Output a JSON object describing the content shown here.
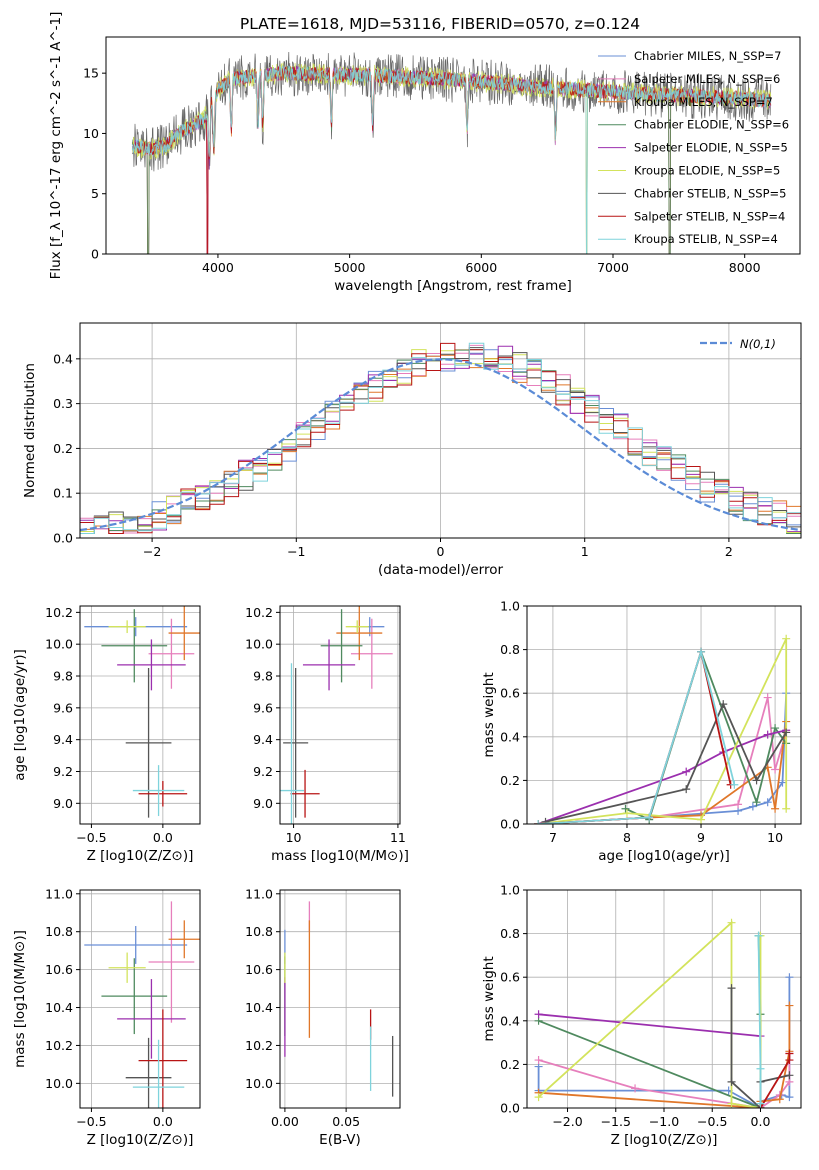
{
  "figure_title": "PLATE=1618, MJD=53116, FIBERID=0570, z=0.124",
  "series_names": [
    "Chabrier MILES, N_SSP=7",
    "Salpeter MILES, N_SSP=6",
    "Kroupa MILES, N_SSP=7",
    "Chabrier ELODIE, N_SSP=6",
    "Salpeter ELODIE, N_SSP=5",
    "Kroupa ELODIE, N_SSP=5",
    "Chabrier STELIB, N_SSP=5",
    "Salpeter STELIB, N_SSP=4",
    "Kroupa STELIB, N_SSP=4"
  ],
  "series_colors": [
    "#6a8fd6",
    "#e67fbc",
    "#e0772a",
    "#4f8a5f",
    "#9b2fae",
    "#d3e35c",
    "#555555",
    "#b81414",
    "#7fd3dc"
  ],
  "chart_data": [
    {
      "type": "line",
      "panel": "spectrum",
      "xlabel": "wavelength [Angstrom, rest frame]",
      "ylabel": "Flux [f_λ 10^-17 erg cm^-2 s^-1 A^-1]",
      "xlim": [
        3150,
        8420
      ],
      "ylim": [
        0,
        18
      ],
      "xticks": [
        4000,
        5000,
        6000,
        7000,
        8000
      ],
      "yticks": [
        0,
        5,
        10,
        15
      ],
      "x_range_data": [
        3350,
        8200
      ],
      "continuum_x": [
        3350,
        3500,
        3600,
        3700,
        3800,
        3900,
        4000,
        4100,
        4300,
        4500,
        4800,
        5200,
        5600,
        6000,
        6400,
        6800,
        7200,
        7600,
        8000,
        8200
      ],
      "continuum_y": [
        9,
        8.7,
        8.9,
        10,
        10.6,
        11.3,
        13.6,
        14.5,
        14.8,
        15,
        14.9,
        14.8,
        14.6,
        14.3,
        13.9,
        13.6,
        13.3,
        13.1,
        12.9,
        12.7
      ],
      "absorption_lines": [
        3934,
        3969,
        4101,
        4304,
        4340,
        4861,
        5175,
        5892,
        6563
      ],
      "deep_drop_x": [
        3470,
        3920,
        6800,
        7430
      ],
      "legend": "upper right",
      "grid": false
    },
    {
      "type": "line",
      "panel": "residual_histogram",
      "xlabel": "(data-model)/error",
      "ylabel": "Normed distribution",
      "xlim": [
        -2.5,
        2.5
      ],
      "ylim": [
        0,
        0.48
      ],
      "xticks": [
        -2,
        -1,
        0,
        1,
        2
      ],
      "yticks": [
        0.0,
        0.1,
        0.2,
        0.3,
        0.4
      ],
      "bin_width": 0.1,
      "legend_label": "N(0,1)",
      "normal_mean": 0,
      "normal_sigma": 1,
      "grid": true
    },
    {
      "type": "scatter",
      "panel": "age_vs_Z",
      "xlabel": "Z [log10(Z/Z⊙)]",
      "ylabel": "age  [log10(age/yr)]",
      "xlim": [
        -0.58,
        0.26
      ],
      "ylim": [
        8.87,
        10.24
      ],
      "xticks": [
        -0.5,
        0.0
      ],
      "yticks": [
        9.0,
        9.2,
        9.4,
        9.6,
        9.8,
        10.0,
        10.2
      ],
      "points": [
        {
          "x": -0.19,
          "xerr": 0.36,
          "y": 10.11,
          "yerr": 0.06
        },
        {
          "x": 0.06,
          "xerr": 0.16,
          "y": 9.94,
          "yerr": 0.22
        },
        {
          "x": 0.15,
          "xerr": 0.11,
          "y": 10.07,
          "yerr": 0.17
        },
        {
          "x": -0.2,
          "xerr": 0.23,
          "y": 9.99,
          "yerr": 0.23
        },
        {
          "x": -0.08,
          "xerr": 0.24,
          "y": 9.87,
          "yerr": 0.16
        },
        {
          "x": -0.25,
          "xerr": 0.13,
          "y": 10.11,
          "yerr": 0.04
        },
        {
          "x": -0.1,
          "xerr": 0.16,
          "y": 9.38,
          "yerr": 0.47
        },
        {
          "x": 0.0,
          "xerr": 0.17,
          "y": 9.06,
          "yerr": 0.08
        },
        {
          "x": -0.03,
          "xerr": 0.18,
          "y": 9.08,
          "yerr": 0.16
        }
      ],
      "grid": true
    },
    {
      "type": "scatter",
      "panel": "age_vs_mass",
      "xlabel": "mass [log10(M/M⊙)]",
      "ylabel": "",
      "xlim": [
        9.87,
        11.02
      ],
      "ylim": [
        8.87,
        10.24
      ],
      "xticks": [
        10,
        11
      ],
      "yticks": [
        9.0,
        9.2,
        9.4,
        9.6,
        9.8,
        10.0,
        10.2
      ],
      "points": [
        {
          "x": 10.73,
          "xerr": 0.14,
          "y": 10.11,
          "yerr": 0.06
        },
        {
          "x": 10.75,
          "xerr": 0.2,
          "y": 9.94,
          "yerr": 0.22
        },
        {
          "x": 10.63,
          "xerr": 0.22,
          "y": 10.07,
          "yerr": 0.17
        },
        {
          "x": 10.46,
          "xerr": 0.2,
          "y": 9.99,
          "yerr": 0.23
        },
        {
          "x": 10.34,
          "xerr": 0.25,
          "y": 9.87,
          "yerr": 0.16
        },
        {
          "x": 10.61,
          "xerr": 0.11,
          "y": 10.11,
          "yerr": 0.04
        },
        {
          "x": 10.02,
          "xerr": 0.12,
          "y": 9.38,
          "yerr": 0.47
        },
        {
          "x": 10.11,
          "xerr": 0.14,
          "y": 9.06,
          "yerr": 0.15
        },
        {
          "x": 9.98,
          "xerr": 0.12,
          "y": 9.08,
          "yerr": 0.8
        }
      ],
      "grid": true
    },
    {
      "type": "line",
      "panel": "mass_weight_vs_age",
      "xlabel": "age  [log10(age/yr)]",
      "ylabel": "mass weight",
      "xlim": [
        6.65,
        10.35
      ],
      "ylim": [
        0,
        1.0
      ],
      "xticks": [
        7,
        8,
        9,
        10
      ],
      "yticks": [
        0.0,
        0.2,
        0.4,
        0.6,
        0.8,
        1.0
      ],
      "series": [
        {
          "x": [
            6.8,
            8.3,
            9.5,
            9.7,
            9.9,
            10.1,
            10.15
          ],
          "y": [
            0.0,
            0.03,
            0.06,
            0.08,
            0.1,
            0.19,
            0.6
          ]
        },
        {
          "x": [
            6.8,
            8.3,
            9.5,
            9.9,
            10.0,
            10.15
          ],
          "y": [
            0.0,
            0.03,
            0.09,
            0.58,
            0.25,
            0.42
          ]
        },
        {
          "x": [
            6.8,
            8.3,
            9.0,
            9.9,
            10.0,
            10.15
          ],
          "y": [
            0.0,
            0.03,
            0.04,
            0.26,
            0.07,
            0.47
          ]
        },
        {
          "x": [
            7.98,
            8.3,
            9.0,
            9.75,
            10.0,
            10.15
          ],
          "y": [
            0.07,
            0.02,
            0.79,
            0.1,
            0.44,
            0.37
          ]
        },
        {
          "x": [
            6.8,
            8.8,
            9.3,
            9.9,
            10.15
          ],
          "y": [
            0.0,
            0.24,
            0.33,
            0.41,
            0.43
          ]
        },
        {
          "x": [
            6.8,
            8.0,
            9.0,
            10.15,
            10.15
          ],
          "y": [
            0.0,
            0.05,
            0.02,
            0.85,
            0.07
          ]
        },
        {
          "x": [
            6.9,
            8.8,
            9.3,
            9.75,
            10.15
          ],
          "y": [
            0.01,
            0.16,
            0.55,
            0.2,
            0.42
          ]
        },
        {
          "x": [
            6.8,
            8.3,
            9.0,
            9.4
          ],
          "y": [
            0.0,
            0.03,
            0.79,
            0.18
          ]
        },
        {
          "x": [
            6.8,
            8.3,
            9.0,
            9.45
          ],
          "y": [
            0.0,
            0.03,
            0.79,
            0.18
          ]
        }
      ],
      "grid": true
    },
    {
      "type": "scatter",
      "panel": "mass_vs_Z",
      "xlabel": "Z [log10(Z/Z⊙)]",
      "ylabel": "mass [log10(M/M⊙)]",
      "xlim": [
        -0.58,
        0.26
      ],
      "ylim": [
        9.87,
        11.02
      ],
      "xticks": [
        -0.5,
        0.0
      ],
      "yticks": [
        10.0,
        10.2,
        10.4,
        10.6,
        10.8,
        11.0
      ],
      "points": [
        {
          "x": -0.19,
          "xerr": 0.36,
          "y": 10.73,
          "yerr": 0.1
        },
        {
          "x": 0.06,
          "xerr": 0.16,
          "y": 10.64,
          "yerr": 0.32
        },
        {
          "x": 0.15,
          "xerr": 0.11,
          "y": 10.76,
          "yerr": 0.1
        },
        {
          "x": -0.2,
          "xerr": 0.23,
          "y": 10.46,
          "yerr": 0.2
        },
        {
          "x": -0.08,
          "xerr": 0.24,
          "y": 10.34,
          "yerr": 0.21
        },
        {
          "x": -0.25,
          "xerr": 0.13,
          "y": 10.61,
          "yerr": 0.08
        },
        {
          "x": -0.1,
          "xerr": 0.16,
          "y": 10.03,
          "yerr": 0.21
        },
        {
          "x": 0.0,
          "xerr": 0.17,
          "y": 10.12,
          "yerr": 0.27
        },
        {
          "x": -0.03,
          "xerr": 0.18,
          "y": 9.98,
          "yerr": 0.25
        }
      ],
      "grid": true
    },
    {
      "type": "scatter",
      "panel": "mass_vs_ebv",
      "xlabel": "E(B-V)",
      "ylabel": "",
      "xlim": [
        -0.004,
        0.094
      ],
      "ylim": [
        9.87,
        11.02
      ],
      "xticks": [
        0.0,
        0.05
      ],
      "yticks": [
        10.0,
        10.2,
        10.4,
        10.6,
        10.8,
        11.0
      ],
      "points": [
        {
          "x": 0.0,
          "y": 10.72,
          "yerr": 0.09
        },
        {
          "x": 0.02,
          "y": 10.88,
          "yerr": 0.08
        },
        {
          "x": 0.02,
          "y": 10.55,
          "yerr": 0.31
        },
        {
          "x": 0.0,
          "y": 10.46,
          "yerr": 0.21
        },
        {
          "x": 0.0,
          "y": 10.35,
          "yerr": 0.21
        },
        {
          "x": 0.0,
          "y": 10.61,
          "yerr": 0.08
        },
        {
          "x": 0.088,
          "y": 10.09,
          "yerr": 0.16
        },
        {
          "x": 0.07,
          "y": 10.31,
          "yerr": 0.08
        },
        {
          "x": 0.07,
          "y": 10.13,
          "yerr": 0.17
        }
      ],
      "grid": true
    },
    {
      "type": "line",
      "panel": "mass_weight_vs_Z",
      "xlabel": "Z [log10(Z/Z⊙)]",
      "ylabel": "mass weight",
      "xlim": [
        -2.42,
        0.42
      ],
      "ylim": [
        0,
        1.0
      ],
      "xticks": [
        -2.0,
        -1.5,
        -1.0,
        -0.5,
        0.0
      ],
      "yticks": [
        0.0,
        0.2,
        0.4,
        0.6,
        0.8,
        1.0
      ],
      "series": [
        {
          "x": [
            -2.3,
            -2.3,
            -0.33,
            0.0,
            0.0,
            0.22,
            0.3,
            0.3
          ],
          "y": [
            0.19,
            0.08,
            0.08,
            0.0,
            0.03,
            0.06,
            0.05,
            0.6
          ]
        },
        {
          "x": [
            -2.3,
            -1.3,
            0.0,
            0.2,
            0.3,
            0.3
          ],
          "y": [
            0.22,
            0.09,
            0.0,
            0.06,
            0.12,
            0.25
          ]
        },
        {
          "x": [
            -2.3,
            0.0,
            0.0,
            0.2,
            0.3,
            0.3
          ],
          "y": [
            0.07,
            0.0,
            0.03,
            0.04,
            0.26,
            0.47
          ]
        },
        {
          "x": [
            -2.3,
            0.0,
            0.0,
            -0.02
          ],
          "y": [
            0.4,
            0.0,
            0.43,
            0.79
          ]
        },
        {
          "x": [
            -2.3,
            0.0
          ],
          "y": [
            0.43,
            0.33
          ]
        },
        {
          "x": [
            -2.3,
            -0.3,
            -0.3,
            0.0,
            0.0
          ],
          "y": [
            0.05,
            0.85,
            0.02,
            0.0,
            0.79
          ]
        },
        {
          "x": [
            -0.3,
            -0.3,
            0.0,
            0.0,
            0.3
          ],
          "y": [
            0.55,
            0.12,
            0.0,
            0.12,
            0.15
          ]
        },
        {
          "x": [
            0.0,
            0.3,
            0.3
          ],
          "y": [
            0.0,
            0.22,
            0.25
          ]
        },
        {
          "x": [
            0.0,
            0.0,
            -0.02
          ],
          "y": [
            0.02,
            0.18,
            0.79
          ]
        }
      ],
      "grid": true
    }
  ]
}
